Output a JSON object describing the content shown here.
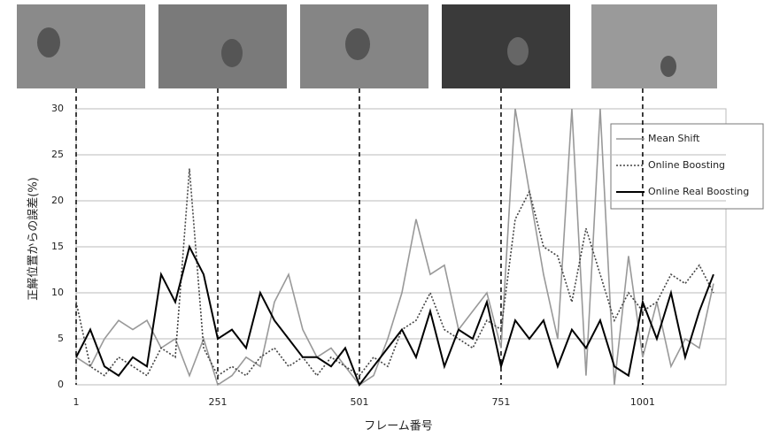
{
  "chart_data": {
    "type": "line",
    "xlabel": "フレーム番号",
    "ylabel": "正解位置からの誤差(%)",
    "x": [
      1,
      26,
      51,
      76,
      101,
      126,
      151,
      176,
      201,
      226,
      251,
      276,
      301,
      326,
      351,
      376,
      401,
      426,
      451,
      476,
      501,
      526,
      551,
      576,
      601,
      626,
      651,
      676,
      701,
      726,
      751,
      776,
      801,
      826,
      851,
      876,
      901,
      926,
      951,
      976,
      1001,
      1026,
      1051,
      1076,
      1101,
      1126
    ],
    "series": [
      {
        "name": "Mean Shift",
        "color": "#999999",
        "linestyle": "solid",
        "values": [
          3,
          2,
          5,
          7,
          6,
          7,
          4,
          5,
          1,
          5,
          0,
          1,
          3,
          2,
          9,
          12,
          6,
          3,
          4,
          2,
          0,
          1,
          5,
          10,
          18,
          12,
          13,
          6,
          8,
          10,
          4,
          30,
          21,
          12,
          5,
          30,
          1,
          30,
          0,
          14,
          3,
          9,
          2,
          5,
          4,
          11
        ]
      },
      {
        "name": "Online Boosting",
        "color": "#444444",
        "linestyle": "dotted",
        "values": [
          9,
          2,
          1,
          3,
          2,
          1,
          4,
          3,
          23.5,
          4,
          1,
          2,
          1,
          3,
          4,
          2,
          3,
          1,
          3,
          2,
          1,
          3,
          2,
          6,
          7,
          10,
          6,
          5,
          4,
          7,
          6,
          18,
          21,
          15,
          14,
          9,
          17,
          12,
          7,
          10,
          8,
          9,
          12,
          11,
          13,
          10
        ]
      },
      {
        "name": "Online Real Boosting",
        "color": "#000000",
        "linestyle": "solid",
        "values": [
          3,
          6,
          2,
          1,
          3,
          2,
          12,
          9,
          15,
          12,
          5,
          6,
          4,
          10,
          7,
          5,
          3,
          3,
          2,
          4,
          0,
          2,
          4,
          6,
          3,
          8,
          2,
          6,
          5,
          9,
          2,
          7,
          5,
          7,
          2,
          6,
          4,
          7,
          2,
          1,
          9,
          5,
          10,
          3,
          8,
          12
        ]
      }
    ],
    "xlim": [
      1,
      1148
    ],
    "xticks": [
      1,
      251,
      501,
      751,
      1001
    ],
    "ylim": [
      0,
      30
    ],
    "yticks": [
      0,
      5,
      10,
      15,
      20,
      25,
      30
    ],
    "grid": true,
    "legend": "upper right"
  }
}
